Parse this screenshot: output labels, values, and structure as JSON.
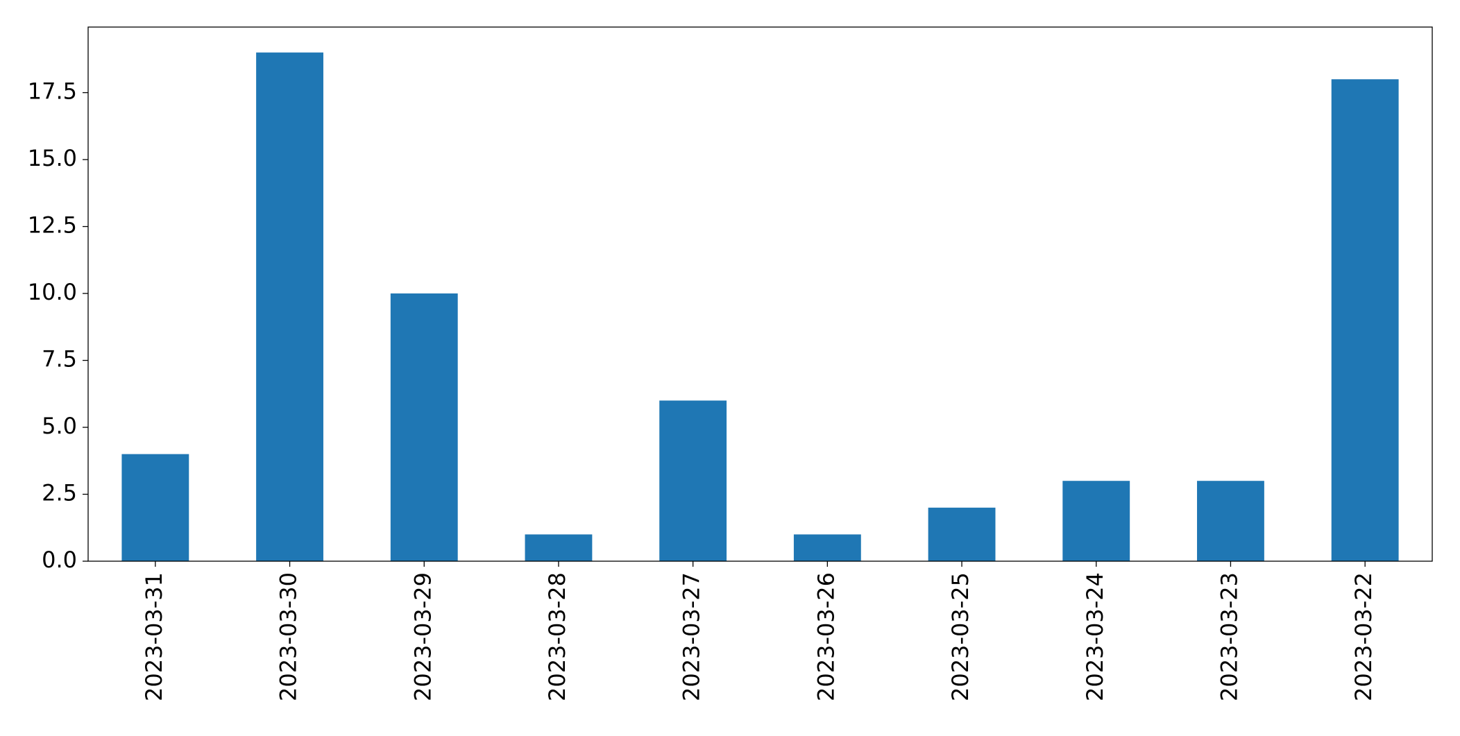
{
  "chart_data": {
    "type": "bar",
    "categories": [
      "2023-03-31",
      "2023-03-30",
      "2023-03-29",
      "2023-03-28",
      "2023-03-27",
      "2023-03-26",
      "2023-03-25",
      "2023-03-24",
      "2023-03-23",
      "2023-03-22"
    ],
    "values": [
      4,
      19,
      10,
      1,
      6,
      1,
      2,
      3,
      3,
      18
    ],
    "color": "#1f77b4",
    "ylim": [
      0,
      19.95
    ],
    "yticks": [
      {
        "value": 0,
        "label": "0.0"
      },
      2.5,
      {
        "value": 5,
        "label": "5.0"
      },
      7.5,
      {
        "value": 10,
        "label": "10.0"
      },
      12.5,
      {
        "value": 15,
        "label": "15.0"
      },
      17.5
    ],
    "grid": false
  }
}
